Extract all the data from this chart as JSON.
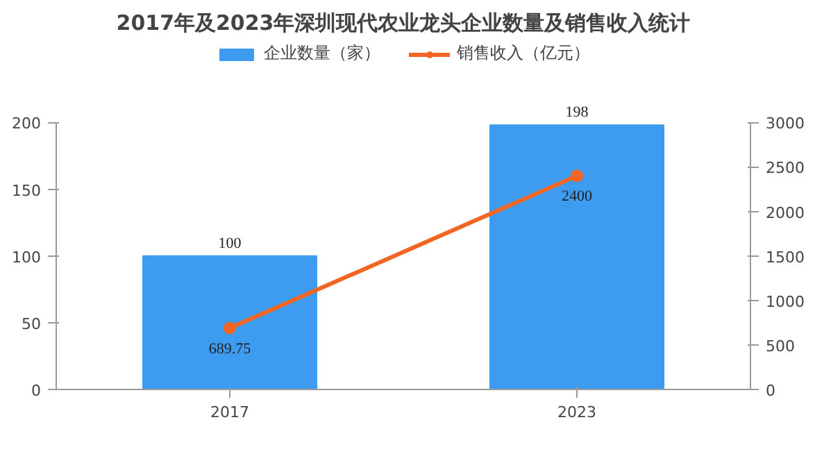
{
  "chart_data": {
    "type": "bar",
    "title": "2017年及2023年深圳现代农业龙头企业数量及销售收入统计",
    "categories": [
      "2017",
      "2023"
    ],
    "series": [
      {
        "name": "企业数量（家）",
        "color": "#3d9bf0",
        "values": [
          100,
          198
        ]
      },
      {
        "name": "销售收入（亿元）",
        "type": "line",
        "axis": "y2",
        "color": "#f26522",
        "marker": "circle",
        "values": [
          689.75,
          2400
        ]
      }
    ],
    "ylim": [
      0,
      200
    ],
    "yticks": [
      0,
      50,
      100,
      150,
      200
    ],
    "y2lim": [
      0,
      3000
    ],
    "y2ticks": [
      0,
      500,
      1000,
      1500,
      2000,
      2500,
      3000
    ],
    "data_labels": true,
    "legend": "top",
    "grid": false
  }
}
